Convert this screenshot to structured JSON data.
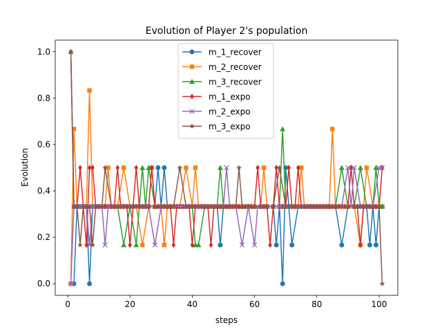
{
  "chart_data": {
    "type": "line",
    "title": "Evolution of Player 2's population",
    "xlabel": "steps",
    "ylabel": "Evolution",
    "xlim": [
      -4,
      106
    ],
    "ylim": [
      -0.05,
      1.05
    ],
    "xticks": [
      0,
      20,
      40,
      60,
      80,
      100
    ],
    "xtick_labels": [
      "0",
      "20",
      "40",
      "60",
      "80",
      "100"
    ],
    "yticks": [
      0.0,
      0.2,
      0.4,
      0.6,
      0.8,
      1.0
    ],
    "ytick_labels": [
      "0.0",
      "0.2",
      "0.4",
      "0.6",
      "0.8",
      "1.0"
    ],
    "grid": false,
    "legend_position": "top-center",
    "series": [
      {
        "name": "m_1_recover",
        "color": "#1f77b4",
        "marker": "circle",
        "x": [
          1,
          2,
          3,
          4,
          5,
          6,
          7,
          8,
          9,
          10,
          12,
          14,
          16,
          18,
          20,
          22,
          24,
          26,
          28,
          29,
          30,
          31,
          32,
          34,
          36,
          38,
          40,
          42,
          44,
          46,
          48,
          49,
          50,
          52,
          54,
          56,
          58,
          60,
          62,
          64,
          66,
          67,
          68,
          69,
          70,
          71,
          72,
          74,
          76,
          78,
          80,
          82,
          84,
          86,
          88,
          90,
          92,
          94,
          96,
          97,
          98,
          99,
          100,
          101
        ],
        "y": [
          0.0,
          0.0,
          0.333,
          0.333,
          0.333,
          0.333,
          0.0,
          0.333,
          0.333,
          0.333,
          0.333,
          0.333,
          0.333,
          0.333,
          0.333,
          0.333,
          0.333,
          0.333,
          0.333,
          0.5,
          0.333,
          0.5,
          0.333,
          0.333,
          0.333,
          0.333,
          0.333,
          0.333,
          0.333,
          0.333,
          0.333,
          0.167,
          0.333,
          0.333,
          0.333,
          0.333,
          0.333,
          0.333,
          0.333,
          0.333,
          0.333,
          0.167,
          0.333,
          0.0,
          0.5,
          0.333,
          0.167,
          0.333,
          0.333,
          0.333,
          0.333,
          0.333,
          0.333,
          0.333,
          0.167,
          0.333,
          0.333,
          0.333,
          0.333,
          0.167,
          0.333,
          0.167,
          0.333,
          0.333
        ]
      },
      {
        "name": "m_2_recover",
        "color": "#ff7f0e",
        "marker": "square",
        "x": [
          1,
          2,
          3,
          4,
          5,
          6,
          7,
          8,
          9,
          10,
          12,
          13,
          14,
          16,
          18,
          20,
          22,
          24,
          26,
          27,
          28,
          30,
          31,
          32,
          34,
          36,
          38,
          40,
          41,
          42,
          44,
          46,
          48,
          50,
          52,
          54,
          56,
          58,
          60,
          62,
          63,
          64,
          66,
          68,
          70,
          72,
          74,
          75,
          76,
          78,
          80,
          82,
          84,
          85,
          86,
          88,
          90,
          92,
          94,
          96,
          98,
          100,
          101
        ],
        "y": [
          0.0,
          0.667,
          0.333,
          0.333,
          0.333,
          0.333,
          0.833,
          0.333,
          0.333,
          0.333,
          0.333,
          0.5,
          0.333,
          0.333,
          0.5,
          0.333,
          0.333,
          0.167,
          0.333,
          0.5,
          0.333,
          0.333,
          0.167,
          0.333,
          0.333,
          0.333,
          0.5,
          0.333,
          0.5,
          0.333,
          0.333,
          0.333,
          0.333,
          0.333,
          0.333,
          0.333,
          0.333,
          0.333,
          0.333,
          0.333,
          0.5,
          0.333,
          0.333,
          0.333,
          0.333,
          0.333,
          0.333,
          0.5,
          0.333,
          0.333,
          0.333,
          0.333,
          0.333,
          0.667,
          0.333,
          0.333,
          0.333,
          0.333,
          0.167,
          0.5,
          0.333,
          0.333,
          0.333
        ]
      },
      {
        "name": "m_3_recover",
        "color": "#2ca02c",
        "marker": "triangle",
        "x": [
          1,
          2,
          3,
          4,
          6,
          8,
          10,
          12,
          14,
          16,
          18,
          20,
          22,
          24,
          25,
          26,
          28,
          30,
          32,
          34,
          36,
          38,
          40,
          41,
          42,
          44,
          46,
          48,
          49,
          50,
          52,
          54,
          56,
          58,
          60,
          62,
          64,
          66,
          68,
          69,
          70,
          72,
          74,
          76,
          78,
          80,
          82,
          84,
          86,
          88,
          90,
          92,
          94,
          96,
          98,
          99,
          100,
          101
        ],
        "y": [
          1.0,
          0.333,
          0.333,
          0.333,
          0.333,
          0.333,
          0.333,
          0.333,
          0.333,
          0.333,
          0.167,
          0.333,
          0.167,
          0.5,
          0.333,
          0.5,
          0.333,
          0.333,
          0.333,
          0.333,
          0.333,
          0.333,
          0.333,
          0.167,
          0.167,
          0.333,
          0.333,
          0.333,
          0.5,
          0.333,
          0.333,
          0.333,
          0.333,
          0.333,
          0.333,
          0.333,
          0.333,
          0.333,
          0.333,
          0.667,
          0.333,
          0.333,
          0.333,
          0.333,
          0.333,
          0.333,
          0.333,
          0.333,
          0.333,
          0.5,
          0.333,
          0.333,
          0.5,
          0.333,
          0.333,
          0.5,
          0.333,
          0.333
        ]
      },
      {
        "name": "m_1_expo",
        "color": "#d62728",
        "marker": "diamond",
        "x": [
          1,
          2,
          3,
          4,
          5,
          6,
          7,
          8,
          9,
          10,
          11,
          12,
          13,
          14,
          15,
          16,
          17,
          18,
          19,
          20,
          21,
          22,
          23,
          24,
          25,
          26,
          27,
          28,
          29,
          30,
          31,
          32,
          33,
          34,
          35,
          36,
          37,
          38,
          39,
          40,
          41,
          42,
          43,
          44,
          45,
          46,
          47,
          48,
          49,
          50,
          51,
          52,
          53,
          54,
          55,
          56,
          57,
          58,
          59,
          60,
          61,
          62,
          63,
          64,
          65,
          66,
          67,
          68,
          69,
          70,
          71,
          72,
          73,
          74,
          75,
          76,
          77,
          78,
          79,
          80,
          81,
          82,
          83,
          84,
          85,
          86,
          87,
          88,
          89,
          90,
          91,
          92,
          93,
          94,
          95,
          96,
          97,
          98,
          99,
          100,
          101
        ],
        "y": [
          1.0,
          0.333,
          0.333,
          0.5,
          0.333,
          0.167,
          0.5,
          0.5,
          0.333,
          0.333,
          0.333,
          0.333,
          0.333,
          0.333,
          0.333,
          0.5,
          0.333,
          0.333,
          0.333,
          0.167,
          0.333,
          0.5,
          0.333,
          0.333,
          0.333,
          0.333,
          0.5,
          0.333,
          0.333,
          0.333,
          0.333,
          0.333,
          0.333,
          0.167,
          0.333,
          0.333,
          0.333,
          0.333,
          0.333,
          0.167,
          0.333,
          0.333,
          0.333,
          0.333,
          0.333,
          0.167,
          0.333,
          0.333,
          0.333,
          0.333,
          0.333,
          0.333,
          0.333,
          0.333,
          0.333,
          0.333,
          0.333,
          0.333,
          0.333,
          0.333,
          0.5,
          0.333,
          0.333,
          0.333,
          0.167,
          0.333,
          0.5,
          0.333,
          0.333,
          0.333,
          0.5,
          0.333,
          0.333,
          0.5,
          0.333,
          0.333,
          0.333,
          0.333,
          0.333,
          0.333,
          0.333,
          0.333,
          0.333,
          0.333,
          0.333,
          0.333,
          0.333,
          0.333,
          0.333,
          0.333,
          0.5,
          0.333,
          0.333,
          0.167,
          0.333,
          0.333,
          0.333,
          0.333,
          0.333,
          0.333,
          0.5
        ]
      },
      {
        "name": "m_2_expo",
        "color": "#9467bd",
        "marker": "x",
        "x": [
          1,
          2,
          3,
          4,
          5,
          6,
          7,
          8,
          9,
          10,
          11,
          12,
          13,
          14,
          16,
          18,
          20,
          22,
          24,
          26,
          28,
          30,
          32,
          34,
          36,
          38,
          40,
          42,
          44,
          46,
          48,
          50,
          51,
          52,
          54,
          56,
          58,
          60,
          61,
          62,
          64,
          66,
          68,
          70,
          72,
          74,
          76,
          78,
          80,
          82,
          84,
          86,
          88,
          90,
          91,
          92,
          94,
          96,
          98,
          100,
          101
        ],
        "y": [
          0.0,
          0.333,
          0.333,
          0.333,
          0.333,
          0.333,
          0.167,
          0.333,
          0.333,
          0.333,
          0.333,
          0.167,
          0.333,
          0.333,
          0.333,
          0.333,
          0.333,
          0.333,
          0.333,
          0.333,
          0.167,
          0.333,
          0.333,
          0.333,
          0.333,
          0.333,
          0.333,
          0.333,
          0.333,
          0.333,
          0.333,
          0.333,
          0.5,
          0.333,
          0.333,
          0.167,
          0.333,
          0.167,
          0.333,
          0.333,
          0.333,
          0.333,
          0.333,
          0.333,
          0.333,
          0.333,
          0.333,
          0.333,
          0.333,
          0.333,
          0.333,
          0.333,
          0.333,
          0.5,
          0.333,
          0.5,
          0.333,
          0.333,
          0.333,
          0.5,
          0.5
        ]
      },
      {
        "name": "m_3_expo",
        "color": "#8c564b",
        "marker": "star",
        "x": [
          1,
          2,
          3,
          4,
          5,
          6,
          7,
          8,
          9,
          10,
          11,
          12,
          14,
          16,
          18,
          20,
          22,
          24,
          26,
          28,
          30,
          32,
          34,
          36,
          38,
          40,
          42,
          44,
          46,
          48,
          50,
          52,
          54,
          55,
          56,
          58,
          60,
          62,
          64,
          66,
          68,
          70,
          72,
          74,
          76,
          78,
          80,
          82,
          84,
          86,
          88,
          90,
          92,
          94,
          96,
          98,
          100,
          101
        ],
        "y": [
          1.0,
          0.333,
          0.333,
          0.167,
          0.333,
          0.333,
          0.333,
          0.167,
          0.333,
          0.333,
          0.333,
          0.5,
          0.333,
          0.333,
          0.333,
          0.333,
          0.333,
          0.333,
          0.333,
          0.333,
          0.333,
          0.333,
          0.333,
          0.5,
          0.333,
          0.333,
          0.333,
          0.333,
          0.333,
          0.333,
          0.333,
          0.333,
          0.333,
          0.5,
          0.333,
          0.333,
          0.333,
          0.333,
          0.333,
          0.333,
          0.5,
          0.333,
          0.333,
          0.333,
          0.333,
          0.333,
          0.333,
          0.333,
          0.333,
          0.333,
          0.333,
          0.333,
          0.333,
          0.333,
          0.333,
          0.333,
          0.333,
          0.0
        ]
      }
    ]
  }
}
